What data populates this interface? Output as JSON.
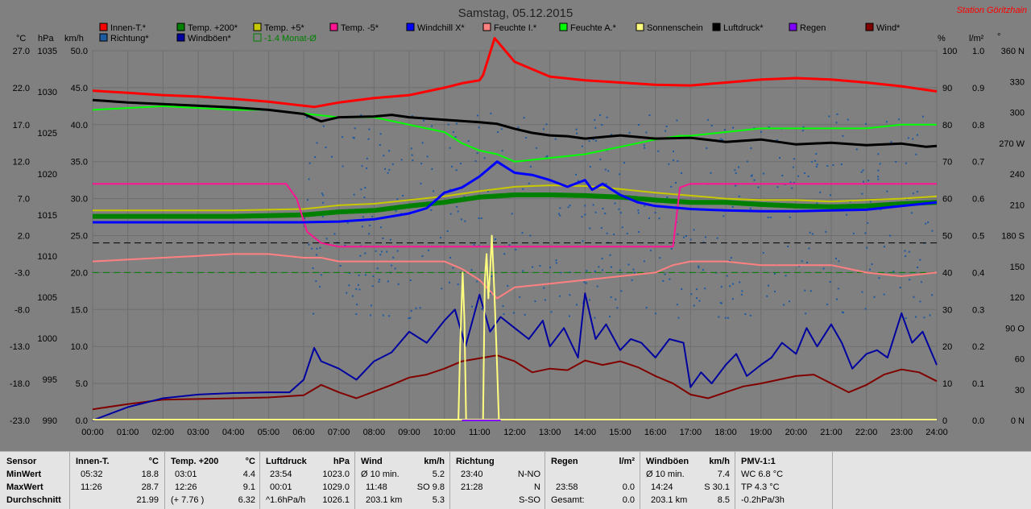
{
  "chart_data": {
    "type": "line",
    "title": "Samstag, 05.12.2015",
    "station": "Station Göritzhain",
    "x_ticks": [
      "00:00",
      "01:00",
      "02:00",
      "03:00",
      "04:00",
      "05:00",
      "06:00",
      "07:00",
      "08:00",
      "09:00",
      "10:00",
      "11:00",
      "12:00",
      "13:00",
      "14:00",
      "15:00",
      "16:00",
      "17:00",
      "18:00",
      "19:00",
      "20:00",
      "21:00",
      "22:00",
      "23:00",
      "24:00"
    ],
    "axes": {
      "celsius": {
        "unit": "°C",
        "range": [
          -23.0,
          27.0
        ],
        "ticks": [
          "27.0",
          "22.0",
          "17.0",
          "12.0",
          "7.0",
          "2.0",
          "-3.0",
          "-8.0",
          "-13.0",
          "-18.0",
          "-23.0"
        ]
      },
      "hpa": {
        "unit": "hPa",
        "range": [
          990,
          1035
        ],
        "ticks": [
          "1035",
          "1030",
          "1025",
          "1020",
          "1015",
          "1010",
          "1005",
          "1000",
          "995",
          "990"
        ]
      },
      "kmh": {
        "unit": "km/h",
        "range": [
          0,
          50
        ],
        "ticks": [
          "50.0",
          "45.0",
          "40.0",
          "35.0",
          "30.0",
          "25.0",
          "20.0",
          "15.0",
          "10.0",
          "5.0",
          "0.0"
        ]
      },
      "percent": {
        "unit": "%",
        "range": [
          0,
          100
        ],
        "ticks": [
          "100",
          "90",
          "80",
          "70",
          "60",
          "50",
          "40",
          "30",
          "20",
          "10",
          "0"
        ]
      },
      "rain": {
        "unit": "l/m²",
        "range": [
          0,
          1
        ],
        "ticks": [
          "1.0",
          "0.9",
          "0.8",
          "0.7",
          "0.6",
          "0.5",
          "0.4",
          "0.3",
          "0.2",
          "0.1",
          "0.0"
        ]
      },
      "direction": {
        "unit": "°",
        "range": [
          0,
          360
        ],
        "ticks": [
          "360 N",
          "330",
          "300",
          "270 W",
          "240",
          "210",
          "180 S",
          "150",
          "120",
          "90 O",
          "60",
          "30",
          "0 N"
        ]
      }
    },
    "grid": true,
    "legend": [
      {
        "name": "Innen-T.*",
        "color": "#ff0000"
      },
      {
        "name": "Temp. +200*",
        "color": "#008000"
      },
      {
        "name": "Temp. +5*",
        "color": "#c8c800"
      },
      {
        "name": "Temp. -5*",
        "color": "#ff1493"
      },
      {
        "name": "Windchill X*",
        "color": "#0000ff"
      },
      {
        "name": "Feuchte I.*",
        "color": "#ff8080"
      },
      {
        "name": "Feuchte A.*",
        "color": "#00ff00"
      },
      {
        "name": "Sonnenschein",
        "color": "#ffff80"
      },
      {
        "name": "Luftdruck*",
        "color": "#000000"
      },
      {
        "name": "Regen",
        "color": "#8000ff"
      },
      {
        "name": "Wind*",
        "color": "#800000"
      },
      {
        "name": "Richtung*",
        "color": "#1e5aa0"
      },
      {
        "name": "Windböen*",
        "color": "#0000a0"
      },
      {
        "name": "-1.4 Monat-Ø",
        "color": "#008000"
      }
    ],
    "series": [
      {
        "key": "innen_t",
        "axis": "celsius",
        "color": "#ff0000",
        "width": 3,
        "x": [
          0,
          1,
          2,
          3,
          4,
          5,
          6.3,
          7,
          8,
          9,
          10,
          10.5,
          11,
          11.1,
          11.43,
          12,
          13,
          14,
          15,
          16,
          17,
          18,
          19,
          20,
          21,
          22,
          23,
          24
        ],
        "y": [
          21.6,
          21.3,
          21.0,
          20.8,
          20.5,
          20.1,
          19.4,
          20.0,
          20.6,
          21.0,
          22.0,
          22.6,
          23.0,
          23.7,
          28.7,
          25.5,
          23.5,
          23.0,
          22.7,
          22.4,
          22.3,
          22.7,
          23.1,
          23.3,
          23.1,
          22.7,
          22.2,
          21.5
        ]
      },
      {
        "key": "luftdruck",
        "axis": "hpa",
        "color": "#000000",
        "width": 3,
        "x": [
          0,
          1,
          2,
          3,
          4,
          5,
          6,
          6.5,
          7,
          8,
          8.5,
          9,
          10,
          11,
          11.5,
          12,
          12.5,
          13,
          13.5,
          14,
          15,
          16,
          17,
          18,
          19,
          20,
          21,
          22,
          23,
          23.7,
          24
        ],
        "y": [
          1029.0,
          1028.7,
          1028.5,
          1028.3,
          1028.1,
          1027.8,
          1027.3,
          1026.4,
          1026.9,
          1027.0,
          1027.2,
          1026.9,
          1026.6,
          1026.3,
          1026.1,
          1025.5,
          1025.0,
          1024.7,
          1024.6,
          1024.3,
          1024.7,
          1024.3,
          1024.4,
          1023.9,
          1024.2,
          1023.6,
          1023.8,
          1023.5,
          1023.7,
          1023.3,
          1023.4
        ]
      },
      {
        "key": "feuchte_a",
        "axis": "percent",
        "color": "#00ff00",
        "width": 2,
        "x": [
          0,
          1,
          2,
          3,
          4,
          5,
          6,
          7,
          8,
          9,
          10,
          10.5,
          11,
          11.5,
          12,
          13,
          14,
          15,
          16,
          16.7,
          17,
          18,
          19,
          20,
          21,
          22,
          23,
          24
        ],
        "y": [
          84,
          84.5,
          85,
          84.5,
          84,
          84,
          83,
          82,
          82,
          80,
          78,
          75,
          73,
          72,
          70,
          71,
          72,
          74,
          76,
          77,
          77,
          78,
          79,
          79,
          79,
          79,
          80,
          80
        ]
      },
      {
        "key": "temp_plus200",
        "axis": "celsius",
        "color": "#008000",
        "width": 6,
        "x": [
          0,
          1,
          2,
          3,
          4,
          5,
          6,
          7,
          8,
          9,
          10,
          11,
          12,
          13,
          14,
          15,
          16,
          17,
          18,
          19,
          20,
          21,
          22,
          23,
          24
        ],
        "y": [
          4.6,
          4.6,
          4.6,
          4.6,
          4.6,
          4.7,
          4.8,
          5.2,
          5.4,
          6.0,
          6.5,
          7.2,
          7.5,
          7.5,
          7.4,
          7.2,
          6.8,
          6.5,
          6.5,
          6.2,
          6.0,
          5.9,
          6.0,
          6.3,
          6.5
        ]
      },
      {
        "key": "temp_plus5",
        "axis": "celsius",
        "color": "#c8c800",
        "width": 2,
        "x": [
          0,
          1,
          2,
          3,
          4,
          5,
          6,
          7,
          8,
          9,
          10,
          11,
          12,
          13,
          14,
          15,
          16,
          17,
          18,
          19,
          20,
          21,
          22,
          23,
          24
        ],
        "y": [
          5.4,
          5.4,
          5.4,
          5.4,
          5.4,
          5.5,
          5.6,
          6.1,
          6.3,
          6.8,
          7.3,
          8.0,
          8.6,
          8.8,
          8.7,
          8.3,
          7.8,
          7.4,
          7.0,
          6.8,
          6.8,
          6.6,
          6.8,
          7.0,
          7.3
        ]
      },
      {
        "key": "temp_minus5",
        "axis": "celsius",
        "color": "#ff1493",
        "width": 2,
        "x": [
          0,
          1,
          2,
          3,
          4,
          5,
          5.5,
          5.8,
          6.1,
          6.5,
          7,
          8,
          9,
          10,
          11,
          12,
          13,
          14,
          15,
          16,
          16.5,
          16.7,
          17,
          18,
          19,
          20,
          21,
          22,
          23,
          24
        ],
        "y": [
          9.0,
          9.0,
          9.0,
          9.0,
          9.0,
          9.0,
          9.0,
          7.0,
          2.5,
          1.0,
          0.5,
          0.5,
          0.5,
          0.5,
          0.5,
          0.5,
          0.5,
          0.5,
          0.5,
          0.5,
          0.5,
          8.5,
          9.0,
          9.0,
          9.0,
          9.0,
          9.0,
          9.0,
          9.0,
          9.0
        ]
      },
      {
        "key": "windchill",
        "axis": "celsius",
        "color": "#0000ff",
        "width": 3,
        "x": [
          0,
          1,
          2,
          3,
          4,
          5,
          6,
          7,
          8,
          9,
          9.5,
          10,
          10.5,
          11,
          11.5,
          12,
          12.5,
          13,
          13.5,
          14,
          14.2,
          14.5,
          15,
          15.5,
          16,
          17,
          18,
          19,
          20,
          21,
          22,
          23,
          24
        ],
        "y": [
          3.8,
          3.8,
          3.8,
          3.8,
          3.8,
          3.8,
          3.8,
          3.9,
          4.2,
          5.0,
          5.7,
          7.8,
          8.5,
          10.0,
          12.0,
          10.5,
          10.2,
          9.5,
          8.6,
          9.5,
          8.2,
          9.0,
          7.5,
          6.5,
          6.0,
          5.6,
          5.4,
          5.3,
          5.3,
          5.4,
          5.5,
          6.0,
          6.5
        ]
      },
      {
        "key": "feuchte_i",
        "axis": "percent",
        "color": "#ff8080",
        "width": 2,
        "x": [
          0,
          1,
          2,
          3,
          4,
          5,
          6,
          6.5,
          7,
          8,
          9,
          10,
          10.5,
          11,
          11.5,
          12,
          13,
          14,
          15,
          16,
          16.5,
          17,
          18,
          19,
          20,
          21,
          22,
          23,
          24
        ],
        "y": [
          43,
          43.5,
          44,
          44.5,
          45,
          45,
          44,
          44,
          43,
          43,
          43,
          43,
          41,
          38,
          33,
          36,
          37,
          38,
          39,
          40,
          42,
          43,
          43,
          42,
          42,
          42,
          40,
          39,
          40
        ]
      },
      {
        "key": "wind",
        "axis": "kmh",
        "color": "#800000",
        "width": 2,
        "x": [
          0,
          1,
          2,
          3,
          4,
          5,
          6,
          6.5,
          7,
          7.5,
          8,
          8.5,
          9,
          9.5,
          10,
          10.5,
          11,
          11.5,
          12,
          12.5,
          13,
          13.5,
          14,
          14.5,
          15,
          15.5,
          16,
          16.5,
          17,
          17.5,
          18,
          18.5,
          19,
          19.5,
          20,
          20.5,
          21,
          21.5,
          22,
          22.5,
          23,
          23.5,
          24
        ],
        "y": [
          1.5,
          2.2,
          2.8,
          2.9,
          3.0,
          3.1,
          3.4,
          4.8,
          3.8,
          3.0,
          3.9,
          4.8,
          5.8,
          6.2,
          7.0,
          8.0,
          8.4,
          8.8,
          8.0,
          6.5,
          7.0,
          6.8,
          8.1,
          7.5,
          8.0,
          7.2,
          6.0,
          5.0,
          3.5,
          3.0,
          3.8,
          4.6,
          5.0,
          5.5,
          6.0,
          6.2,
          5.0,
          3.8,
          4.8,
          6.2,
          6.9,
          6.5,
          5.3
        ]
      },
      {
        "key": "windboeen",
        "axis": "kmh",
        "color": "#0000a0",
        "width": 2,
        "x": [
          0,
          1,
          2,
          3,
          4,
          5,
          5.6,
          6,
          6.3,
          6.5,
          7,
          7.5,
          8,
          8.5,
          9,
          9.5,
          10,
          10.3,
          10.6,
          11,
          11.3,
          11.6,
          12,
          12.4,
          12.8,
          13,
          13.4,
          13.8,
          14,
          14.3,
          14.6,
          15,
          15.3,
          15.6,
          16,
          16.4,
          16.8,
          17,
          17.3,
          17.6,
          18,
          18.3,
          18.6,
          19,
          19.3,
          19.6,
          20,
          20.3,
          20.6,
          21,
          21.3,
          21.6,
          22,
          22.3,
          22.6,
          23,
          23.3,
          23.6,
          24
        ],
        "y": [
          0,
          1.8,
          3.0,
          3.5,
          3.7,
          3.8,
          3.8,
          5.5,
          9.8,
          8.0,
          7.0,
          5.5,
          8.0,
          9.2,
          12.0,
          10.5,
          13.5,
          15.0,
          10.0,
          17.0,
          12.0,
          14.0,
          12.5,
          11.0,
          13.5,
          10.0,
          12.5,
          8.5,
          17.2,
          11.0,
          13.0,
          9.5,
          11.0,
          10.5,
          8.5,
          11.0,
          10.5,
          4.5,
          6.5,
          5.0,
          7.5,
          9.0,
          6.0,
          7.5,
          8.5,
          10.5,
          9.0,
          12.5,
          10.0,
          13.0,
          10.5,
          7.0,
          9.0,
          9.5,
          8.5,
          14.5,
          10.5,
          12.0,
          7.5
        ]
      },
      {
        "key": "sonnenschein",
        "axis": "percent",
        "color": "#ffff80",
        "width": 2,
        "x": [
          10.4,
          10.45,
          10.52,
          10.57,
          10.62,
          11.1,
          11.15,
          11.2,
          11.25,
          11.3,
          11.35,
          11.42,
          11.48,
          11.55,
          11.6
        ],
        "y": [
          0,
          20,
          40,
          27,
          0,
          0,
          38,
          45,
          33,
          40,
          50,
          35,
          20,
          0,
          0
        ]
      }
    ],
    "reference_lines": [
      {
        "axis": "kmh",
        "value": 24.0,
        "color": "#000000",
        "dash": true
      },
      {
        "axis": "kmh",
        "value": 20.0,
        "color": "#008000",
        "dash": true
      }
    ],
    "scatter_direction": {
      "note": "wind direction points (Richtung*) scattered mostly between 100 and 300 degrees after 06:00"
    }
  },
  "stats": {
    "headers": {
      "sensor": "Sensor",
      "innen": "Innen-T.",
      "innen_unit": "°C",
      "temp200": "Temp. +200",
      "temp200_unit": "°C",
      "luftdruck": "Luftdruck",
      "luftdruck_unit": "hPa",
      "wind": "Wind",
      "wind_unit": "km/h",
      "richtung": "Richtung",
      "regen": "Regen",
      "regen_unit": "l/m²",
      "windboeen": "Windböen",
      "windboeen_unit": "km/h",
      "pmv": "PMV-1:1"
    },
    "rows": [
      {
        "label": "MinWert",
        "innen_time": "05:32",
        "innen_val": "18.8",
        "temp200_time": "03:01",
        "temp200_val": "4.4",
        "luft_time": "23:54",
        "luft_val": "1023.0",
        "wind_label": "Ø 10 min.",
        "wind_val": "5.2",
        "richt_time": "23:40",
        "richt_val": "N-NO",
        "regen_time": "",
        "regen_val": "",
        "boe_label": "Ø 10 min.",
        "boe_val": "7.4",
        "pmv": "WC 6.8 °C"
      },
      {
        "label": "MaxWert",
        "innen_time": "11:26",
        "innen_val": "28.7",
        "temp200_time": "12:26",
        "temp200_val": "9.1",
        "luft_time": "00:01",
        "luft_val": "1029.0",
        "wind_label": "11:48",
        "wind_val": "SO 9.8",
        "richt_time": "21:28",
        "richt_val": "N",
        "regen_time": "23:58",
        "regen_val": "0.0",
        "boe_label": "14:24",
        "boe_val": "S 30.1",
        "pmv": "TP 4.3 °C"
      },
      {
        "label": "Durchschnitt",
        "innen_time": "",
        "innen_val": "21.99",
        "temp200_time": "(+ 7.76 )",
        "temp200_val": "6.32",
        "luft_time": "^1.6hPa/h",
        "luft_val": "1026.1",
        "wind_label": "203.1 km",
        "wind_val": "5.3",
        "richt_time": "",
        "richt_val": "S-SO",
        "regen_time": "Gesamt:",
        "regen_val": "0.0",
        "boe_label": "203.1 km",
        "boe_val": "8.5",
        "pmv": "-0.2hPa/3h"
      }
    ]
  }
}
